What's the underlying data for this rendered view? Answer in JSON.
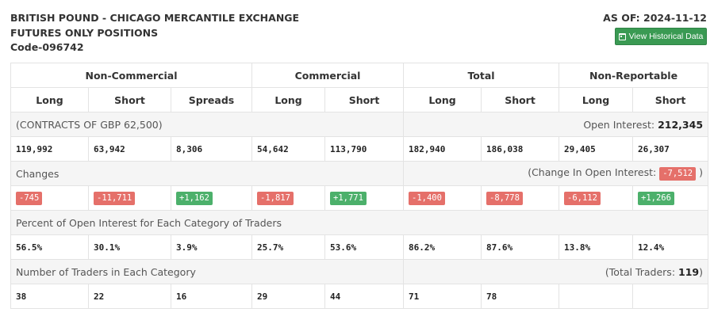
{
  "header": {
    "title_line1": "BRITISH POUND - CHICAGO MERCANTILE EXCHANGE",
    "title_line2": "FUTURES ONLY POSITIONS",
    "code": "Code-096742",
    "as_of": "AS OF: 2024-11-12",
    "history_button": "View Historical Data"
  },
  "groups": [
    "Non-Commercial",
    "Commercial",
    "Total",
    "Non-Reportable"
  ],
  "columns": [
    "Long",
    "Short",
    "Spreads",
    "Long",
    "Short",
    "Long",
    "Short",
    "Long",
    "Short"
  ],
  "contracts": {
    "label": "(CONTRACTS OF GBP 62,500)",
    "oi_label": "Open Interest:",
    "oi_value": "212,345",
    "values": [
      "119,992",
      "63,942",
      "8,306",
      "54,642",
      "113,790",
      "182,940",
      "186,038",
      "29,405",
      "26,307"
    ]
  },
  "changes": {
    "label": "Changes",
    "oi_label": "(Change In Open Interest:",
    "oi_value": "-7,512",
    "oi_close": ")",
    "values": [
      "-745",
      "-11,711",
      "+1,162",
      "-1,817",
      "+1,771",
      "-1,400",
      "-8,778",
      "-6,112",
      "+1,266"
    ]
  },
  "percent": {
    "label": "Percent of Open Interest for Each Category of Traders",
    "values": [
      "56.5%",
      "30.1%",
      "3.9%",
      "25.7%",
      "53.6%",
      "86.2%",
      "87.6%",
      "13.8%",
      "12.4%"
    ]
  },
  "traders": {
    "label": "Number of Traders in Each Category",
    "total_label": "(Total Traders:",
    "total_value": "119",
    "total_close": ")",
    "values": [
      "38",
      "22",
      "16",
      "29",
      "44",
      "71",
      "78",
      "",
      ""
    ]
  },
  "colors": {
    "positive": "#4cb06b",
    "negative": "#e5706a",
    "button": "#3a9a53"
  }
}
